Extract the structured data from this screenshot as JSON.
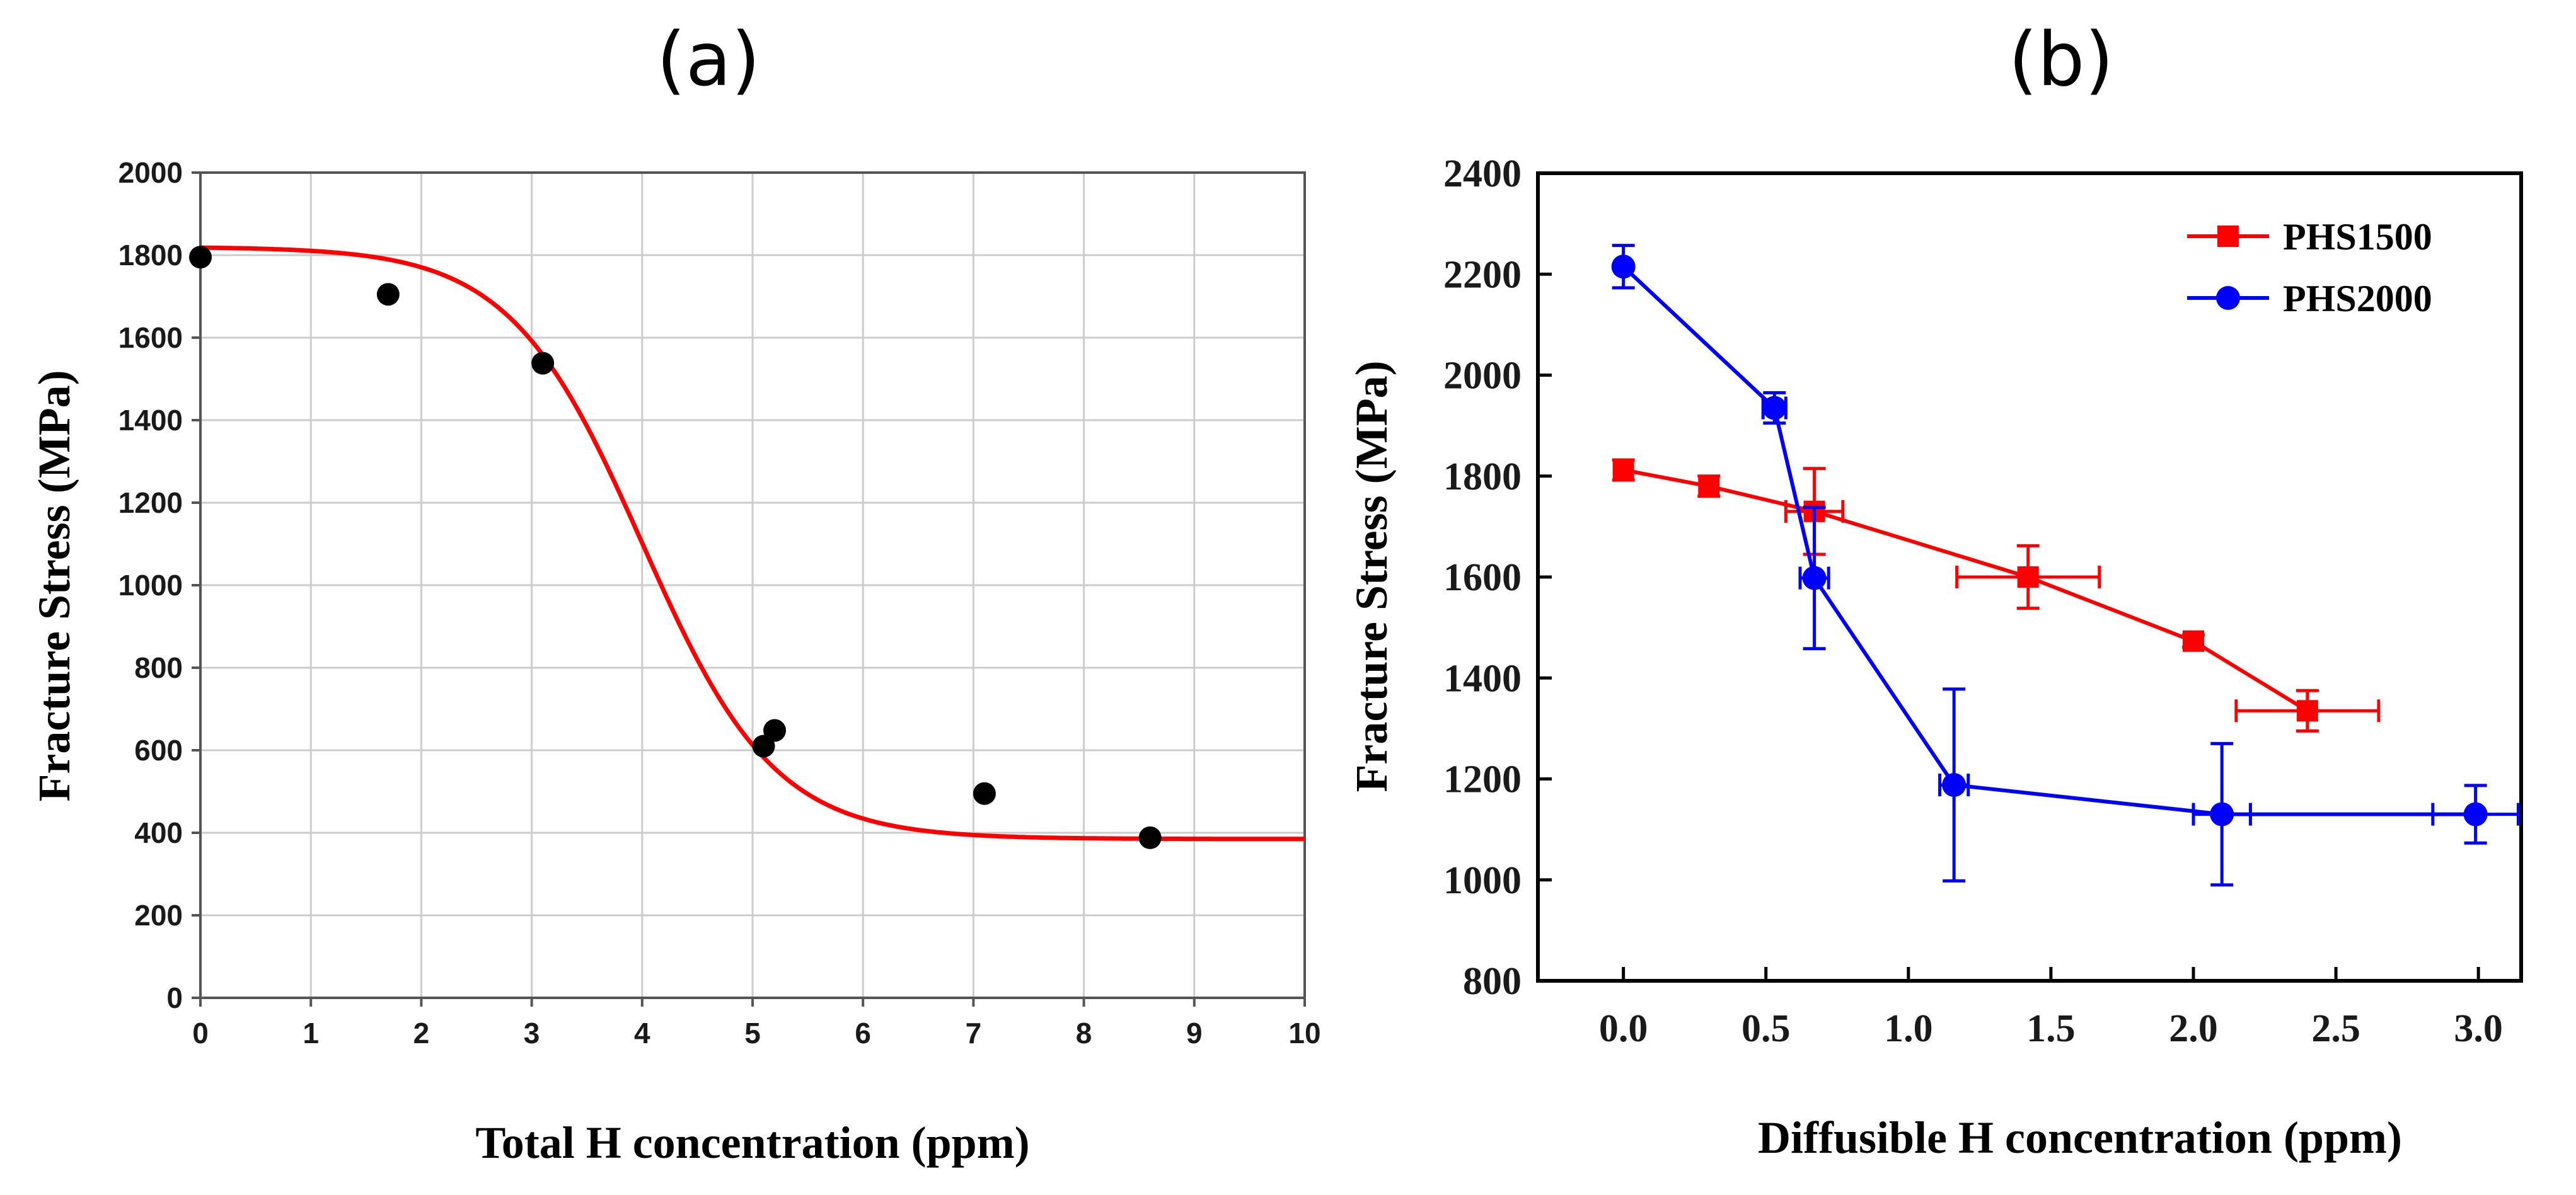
{
  "chart_data": [
    {
      "type": "scatter",
      "panel_label": "(a)",
      "title": "",
      "xlabel": "Total H concentration (ppm)",
      "ylabel": "Fracture Stress (MPa)",
      "xlim": [
        0,
        10
      ],
      "ylim": [
        0,
        2000
      ],
      "xticks": [
        "0",
        "1",
        "2",
        "3",
        "4",
        "5",
        "6",
        "7",
        "8",
        "9",
        "10"
      ],
      "yticks": [
        "0",
        "200",
        "400",
        "600",
        "800",
        "1000",
        "1200",
        "1400",
        "1600",
        "1800",
        "2000"
      ],
      "grid": true,
      "points": [
        {
          "x": 0.0,
          "y": 1795
        },
        {
          "x": 1.7,
          "y": 1705
        },
        {
          "x": 3.1,
          "y": 1538
        },
        {
          "x": 5.1,
          "y": 610
        },
        {
          "x": 5.2,
          "y": 648
        },
        {
          "x": 7.1,
          "y": 495
        },
        {
          "x": 8.6,
          "y": 388
        }
      ],
      "fit": {
        "form": "sigmoid: A2 + (A1 - A2) / (1 + exp((x - x0) / dx))",
        "A1": 1820,
        "A2": 385,
        "x0": 4.0,
        "dx": 0.6,
        "color": "#ff0000"
      },
      "marker_color": "#000000"
    },
    {
      "type": "line",
      "panel_label": "(b)",
      "title": "",
      "xlabel": "Diffusible H concentration (ppm)",
      "ylabel": "Fracture Stress (MPa)",
      "xlim": [
        -0.3,
        3.15
      ],
      "ylim": [
        800,
        2400
      ],
      "xticks": [
        "0.0",
        "0.5",
        "1.0",
        "1.5",
        "2.0",
        "2.5",
        "3.0"
      ],
      "yticks": [
        "800",
        "1000",
        "1200",
        "1400",
        "1600",
        "1800",
        "2000",
        "2200",
        "2400"
      ],
      "grid": false,
      "legend": "top-right",
      "series": [
        {
          "name": "PHS1500",
          "color": "#ff0000",
          "marker": "square",
          "points": [
            {
              "x": 0.0,
              "y": 1812,
              "xerr": 0.0,
              "yerr": 20
            },
            {
              "x": 0.3,
              "y": 1780,
              "xerr": 0.0,
              "yerr": 20
            },
            {
              "x": 0.67,
              "y": 1730,
              "xerr": 0.1,
              "yerr": 85
            },
            {
              "x": 1.42,
              "y": 1600,
              "xerr": 0.25,
              "yerr": 62
            },
            {
              "x": 2.0,
              "y": 1473,
              "xerr": 0.0,
              "yerr": 12
            },
            {
              "x": 2.4,
              "y": 1335,
              "xerr": 0.25,
              "yerr": 40
            }
          ]
        },
        {
          "name": "PHS2000",
          "color": "#0000ff",
          "marker": "circle",
          "points": [
            {
              "x": 0.0,
              "y": 2215,
              "xerr": 0.0,
              "yerr": 42
            },
            {
              "x": 0.53,
              "y": 1935,
              "xerr": 0.04,
              "yerr": 30
            },
            {
              "x": 0.67,
              "y": 1598,
              "xerr": 0.05,
              "yerr": 140
            },
            {
              "x": 1.16,
              "y": 1188,
              "xerr": 0.05,
              "yerr": 190
            },
            {
              "x": 2.1,
              "y": 1130,
              "xerr": 0.1,
              "yerr": 140
            },
            {
              "x": 2.99,
              "y": 1130,
              "xerr": 0.15,
              "yerr": 57
            }
          ]
        }
      ]
    }
  ]
}
